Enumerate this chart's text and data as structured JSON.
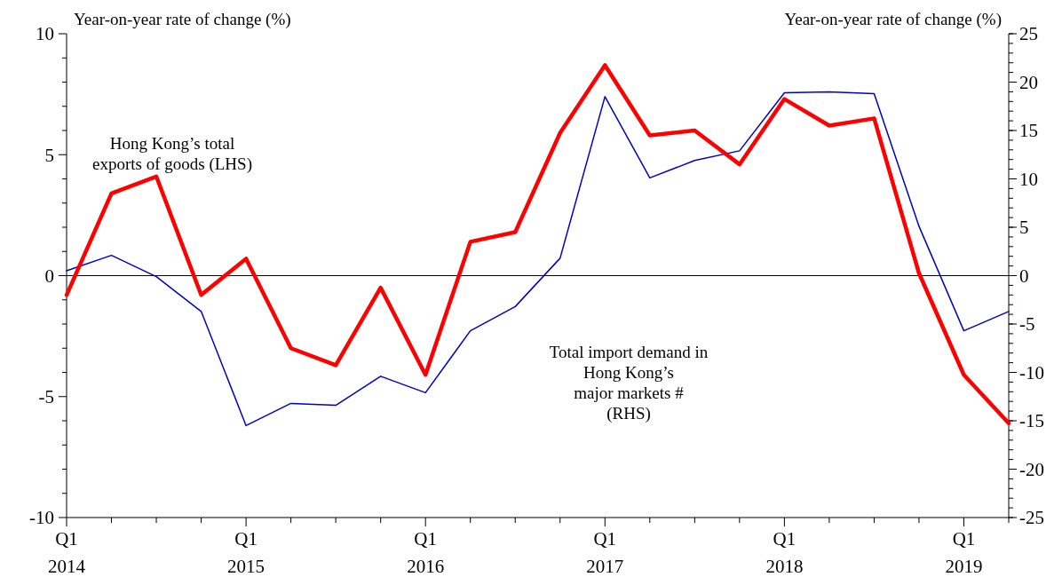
{
  "chart_data": {
    "type": "line",
    "ylabel": "Year-on-year rate of change (%)",
    "y2label": "Year-on-year rate of change (%)",
    "categories": [
      "Q1\n2014",
      null,
      null,
      null,
      "Q1\n2015",
      null,
      null,
      null,
      "Q1\n2016",
      null,
      null,
      null,
      "Q1\n2017",
      null,
      null,
      null,
      "Q1\n2018",
      null,
      null,
      null,
      "Q1\n2019",
      null
    ],
    "series": [
      {
        "name": "Hong Kong’s total\nexports of goods (LHS)",
        "color": "#ff0000",
        "values": [
          -0.8,
          3.4,
          4.1,
          -0.8,
          0.7,
          -3.0,
          -3.7,
          -0.5,
          -4.1,
          1.4,
          1.8,
          5.9,
          8.7,
          5.8,
          6.0,
          4.6,
          7.3,
          6.2,
          6.5,
          0.1,
          -4.1,
          -6.1
        ]
      },
      {
        "name": "Total import demand in\nHong Kong’s\nmajor markets #\n(RHS)",
        "color": "#0000cc",
        "axis": "y2",
        "values": [
          0.5,
          2.1,
          -0.1,
          -3.7,
          -15.5,
          -13.2,
          -13.4,
          -10.4,
          -12.1,
          -5.7,
          -3.2,
          1.8,
          18.5,
          10.1,
          11.9,
          12.9,
          18.9,
          19.0,
          18.8,
          5.1,
          -5.7,
          -3.7
        ]
      }
    ],
    "ylim": [
      -10,
      10
    ],
    "yticks": [
      -10,
      {
        "value": -9,
        "label": null
      },
      {
        "value": -8,
        "label": null
      },
      {
        "value": -7,
        "label": null
      },
      {
        "value": -6,
        "label": null
      },
      -5,
      {
        "value": -4,
        "label": null
      },
      {
        "value": -3,
        "label": null
      },
      {
        "value": -2,
        "label": null
      },
      {
        "value": -1,
        "label": null
      },
      0,
      {
        "value": 1,
        "label": null
      },
      {
        "value": 2,
        "label": null
      },
      {
        "value": 3,
        "label": null
      },
      {
        "value": 4,
        "label": null
      },
      5,
      {
        "value": 6,
        "label": null
      },
      {
        "value": 7,
        "label": null
      },
      {
        "value": 8,
        "label": null
      },
      {
        "value": 9,
        "label": null
      },
      10
    ],
    "y2lim": [
      -25,
      25
    ],
    "y2ticks": [
      -25,
      -20,
      -15,
      -10,
      -5,
      0,
      5,
      10,
      15,
      20,
      25
    ],
    "ref_lines": [
      {
        "axis": "y",
        "value": 0,
        "color": "#000000"
      }
    ],
    "legend": false,
    "grid": false,
    "marker": "none",
    "line_style": "solid"
  }
}
